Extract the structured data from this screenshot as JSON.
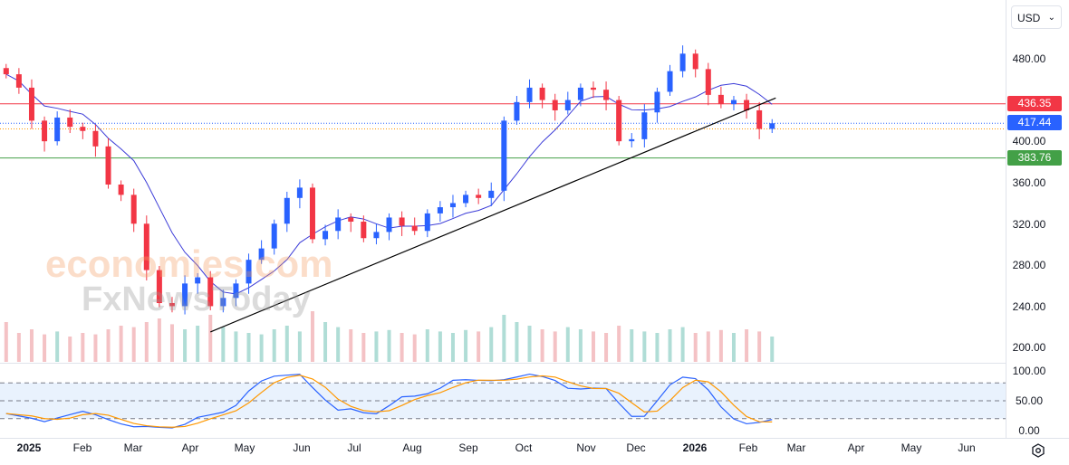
{
  "currency_selector": {
    "value": "USD",
    "icon": "chevron-down-icon"
  },
  "watermark": {
    "line1": "economies.com",
    "line2": "FxNewsToday"
  },
  "price_axis": {
    "ticks": [
      "480.00",
      "400.00",
      "360.00",
      "320.00",
      "280.00",
      "240.00",
      "200.00"
    ]
  },
  "oscillator_axis": {
    "ticks": [
      "100.00",
      "50.00",
      "0.00"
    ]
  },
  "time_axis": {
    "ticks": [
      "2025",
      "Feb",
      "Mar",
      "Apr",
      "May",
      "Jun",
      "Jul",
      "Aug",
      "Sep",
      "Oct",
      "Nov",
      "Dec",
      "2026",
      "Feb",
      "Mar",
      "Apr",
      "May",
      "Jun"
    ]
  },
  "levels": [
    {
      "value": "436.35",
      "color": "#f23645",
      "style": "solid"
    },
    {
      "value": "417.44",
      "color": "#2962ff",
      "style": "dotted"
    },
    {
      "value": "383.76",
      "color": "#43a047",
      "style": "solid"
    }
  ],
  "settings_icon": "gear-icon",
  "chart_data": {
    "type": "candlestick",
    "ylim": [
      190,
      500
    ],
    "up_color": "#2962ff",
    "down_color": "#f23645",
    "ma_color": "#3c3cd8",
    "stoch_colors": [
      "#2962ff",
      "#ff9800"
    ],
    "stoch_bands": [
      20,
      50,
      80
    ],
    "trendline": {
      "from": [
        "2025-04-07",
        215
      ],
      "to": [
        "2026-02-11",
        442
      ],
      "color": "#000000"
    },
    "orange_level": 412,
    "dates": [
      "2024-12-16",
      "2024-12-23",
      "2024-12-30",
      "2025-01-06",
      "2025-01-13",
      "2025-01-20",
      "2025-01-27",
      "2025-02-03",
      "2025-02-10",
      "2025-02-17",
      "2025-02-24",
      "2025-03-03",
      "2025-03-10",
      "2025-03-17",
      "2025-03-24",
      "2025-03-31",
      "2025-04-07",
      "2025-04-14",
      "2025-04-21",
      "2025-04-28",
      "2025-05-05",
      "2025-05-12",
      "2025-05-19",
      "2025-05-26",
      "2025-06-02",
      "2025-06-09",
      "2025-06-16",
      "2025-06-23",
      "2025-06-30",
      "2025-07-07",
      "2025-07-14",
      "2025-07-21",
      "2025-07-28",
      "2025-08-04",
      "2025-08-11",
      "2025-08-18",
      "2025-08-25",
      "2025-09-01",
      "2025-09-08",
      "2025-09-15",
      "2025-09-22",
      "2025-09-29",
      "2025-10-06",
      "2025-10-13",
      "2025-10-20",
      "2025-10-27",
      "2025-11-03",
      "2025-11-10",
      "2025-11-17",
      "2025-11-24",
      "2025-12-01",
      "2025-12-08",
      "2025-12-15",
      "2025-12-22",
      "2025-12-29",
      "2026-01-05",
      "2026-01-12",
      "2026-01-19",
      "2026-01-26",
      "2026-02-02",
      "2026-02-09"
    ],
    "close": [
      465,
      452,
      420,
      400,
      423,
      414,
      410,
      395,
      358,
      348,
      320,
      275,
      243,
      240,
      262,
      268,
      240,
      248,
      262,
      285,
      296,
      320,
      345,
      355,
      305,
      313,
      326,
      322,
      306,
      312,
      326,
      318,
      313,
      330,
      336,
      340,
      348,
      345,
      352,
      420,
      438,
      452,
      440,
      430,
      440,
      452,
      450,
      440,
      400,
      402,
      428,
      448,
      468,
      485,
      470,
      445,
      436,
      440,
      430,
      412,
      417.44
    ],
    "volume_relative": [
      55,
      40,
      45,
      38,
      42,
      35,
      40,
      38,
      45,
      50,
      48,
      55,
      60,
      52,
      45,
      50,
      65,
      48,
      42,
      40,
      38,
      45,
      50,
      42,
      70,
      55,
      48,
      45,
      40,
      42,
      44,
      40,
      38,
      45,
      42,
      40,
      44,
      42,
      48,
      65,
      55,
      50,
      45,
      42,
      48,
      45,
      42,
      40,
      50,
      45,
      42,
      40,
      45,
      48,
      40,
      42,
      44,
      40,
      45,
      42,
      35
    ]
  }
}
